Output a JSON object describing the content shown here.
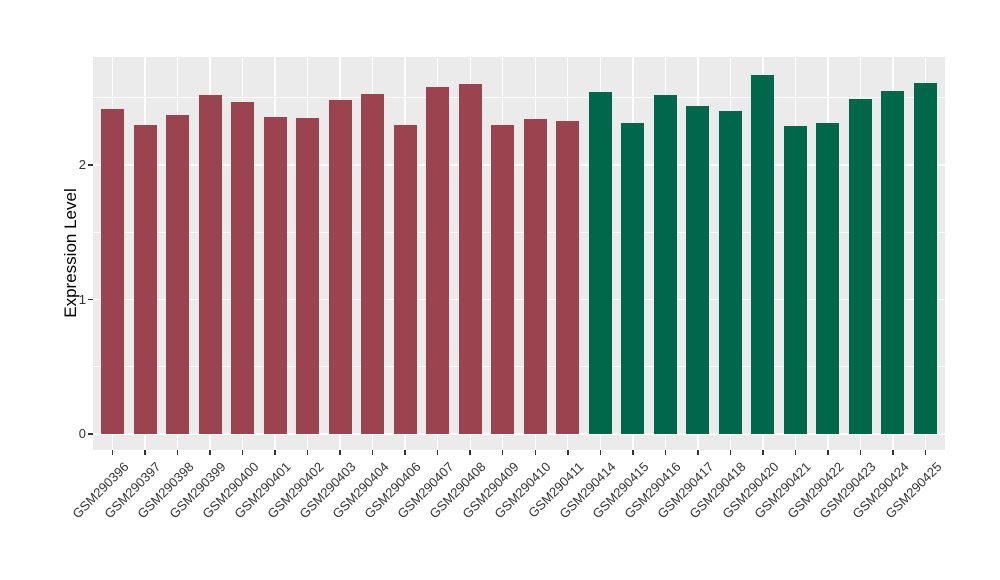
{
  "chart_data": {
    "type": "bar",
    "title": "",
    "xlabel": "",
    "ylabel": "Expression Level",
    "ylim": [
      0,
      2.8
    ],
    "yticks": [
      0,
      1,
      2
    ],
    "yminor": [
      0.5,
      1.5,
      2.5
    ],
    "grid": "on",
    "legend_position": "none",
    "panel_bg_color": "#EBEBEB",
    "grid_color": "#FFFFFF",
    "tick_mark_color": "#333333",
    "tick_label_color": "#333333",
    "axis_title_color": "#000000",
    "groups": [
      {
        "name": "group-1",
        "color": "#9B4450"
      },
      {
        "name": "group-2",
        "color": "#00684A"
      }
    ],
    "categories": [
      "GSM290396",
      "GSM290397",
      "GSM290398",
      "GSM290399",
      "GSM290400",
      "GSM290401",
      "GSM290402",
      "GSM290403",
      "GSM290404",
      "GSM290406",
      "GSM290407",
      "GSM290408",
      "GSM290409",
      "GSM290410",
      "GSM290411",
      "GSM290414",
      "GSM290415",
      "GSM290416",
      "GSM290417",
      "GSM290418",
      "GSM290420",
      "GSM290421",
      "GSM290422",
      "GSM290423",
      "GSM290424",
      "GSM290425"
    ],
    "samples": [
      {
        "id": "GSM290396",
        "value": 2.42,
        "group": 0
      },
      {
        "id": "GSM290397",
        "value": 2.3,
        "group": 0
      },
      {
        "id": "GSM290398",
        "value": 2.37,
        "group": 0
      },
      {
        "id": "GSM290399",
        "value": 2.52,
        "group": 0
      },
      {
        "id": "GSM290400",
        "value": 2.47,
        "group": 0
      },
      {
        "id": "GSM290401",
        "value": 2.36,
        "group": 0
      },
      {
        "id": "GSM290402",
        "value": 2.35,
        "group": 0
      },
      {
        "id": "GSM290403",
        "value": 2.48,
        "group": 0
      },
      {
        "id": "GSM290404",
        "value": 2.53,
        "group": 0
      },
      {
        "id": "GSM290406",
        "value": 2.3,
        "group": 0
      },
      {
        "id": "GSM290407",
        "value": 2.58,
        "group": 0
      },
      {
        "id": "GSM290408",
        "value": 2.6,
        "group": 0
      },
      {
        "id": "GSM290409",
        "value": 2.3,
        "group": 0
      },
      {
        "id": "GSM290410",
        "value": 2.34,
        "group": 0
      },
      {
        "id": "GSM290411",
        "value": 2.33,
        "group": 0
      },
      {
        "id": "GSM290414",
        "value": 2.54,
        "group": 1
      },
      {
        "id": "GSM290415",
        "value": 2.31,
        "group": 1
      },
      {
        "id": "GSM290416",
        "value": 2.52,
        "group": 1
      },
      {
        "id": "GSM290417",
        "value": 2.44,
        "group": 1
      },
      {
        "id": "GSM290418",
        "value": 2.4,
        "group": 1
      },
      {
        "id": "GSM290420",
        "value": 2.67,
        "group": 1
      },
      {
        "id": "GSM290421",
        "value": 2.29,
        "group": 1
      },
      {
        "id": "GSM290422",
        "value": 2.31,
        "group": 1
      },
      {
        "id": "GSM290423",
        "value": 2.49,
        "group": 1
      },
      {
        "id": "GSM290424",
        "value": 2.55,
        "group": 1
      },
      {
        "id": "GSM290425",
        "value": 2.61,
        "group": 1
      }
    ]
  }
}
